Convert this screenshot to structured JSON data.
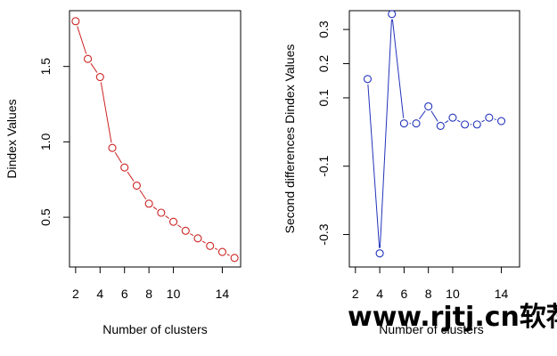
{
  "chart_data": [
    {
      "type": "line",
      "title": "",
      "xlabel": "Number of clusters",
      "ylabel": "Dindex Values",
      "xlim": [
        1.5,
        15.5
      ],
      "ylim": [
        0.17,
        1.87
      ],
      "xticks": [
        2,
        4,
        6,
        8,
        10,
        14
      ],
      "yticks": [
        0.5,
        1.0,
        1.5
      ],
      "ytick_labels": [
        "0.5",
        "1.0",
        "1.5"
      ],
      "color": "#cc2222",
      "series": [
        {
          "x": [
            2,
            3,
            4,
            5,
            6,
            7,
            8,
            9,
            10,
            11,
            12,
            13,
            14,
            15
          ],
          "values": [
            1.8,
            1.55,
            1.43,
            0.96,
            0.83,
            0.71,
            0.59,
            0.53,
            0.47,
            0.41,
            0.36,
            0.31,
            0.27,
            0.23
          ]
        }
      ]
    },
    {
      "type": "line",
      "title": "",
      "xlabel": "Number of clusters",
      "ylabel": "Second differences Dindex Values",
      "xlim": [
        1.5,
        15.5
      ],
      "ylim": [
        -0.395,
        0.355
      ],
      "xticks": [
        2,
        4,
        6,
        8,
        10,
        14
      ],
      "yticks": [
        -0.3,
        -0.1,
        0.1,
        0.2,
        0.3
      ],
      "ytick_labels": [
        "-0.3",
        "-0.1",
        "0.1",
        "0.2",
        "0.3"
      ],
      "color": "#2233bb",
      "series": [
        {
          "x": [
            3,
            4,
            5,
            6,
            7,
            8,
            9,
            10,
            11,
            12,
            13,
            14
          ],
          "values": [
            0.155,
            -0.355,
            0.345,
            0.025,
            0.025,
            0.075,
            0.018,
            0.042,
            0.022,
            0.022,
            0.042,
            0.032
          ]
        }
      ]
    }
  ],
  "watermark": "www.rjtj.cn软荐网"
}
